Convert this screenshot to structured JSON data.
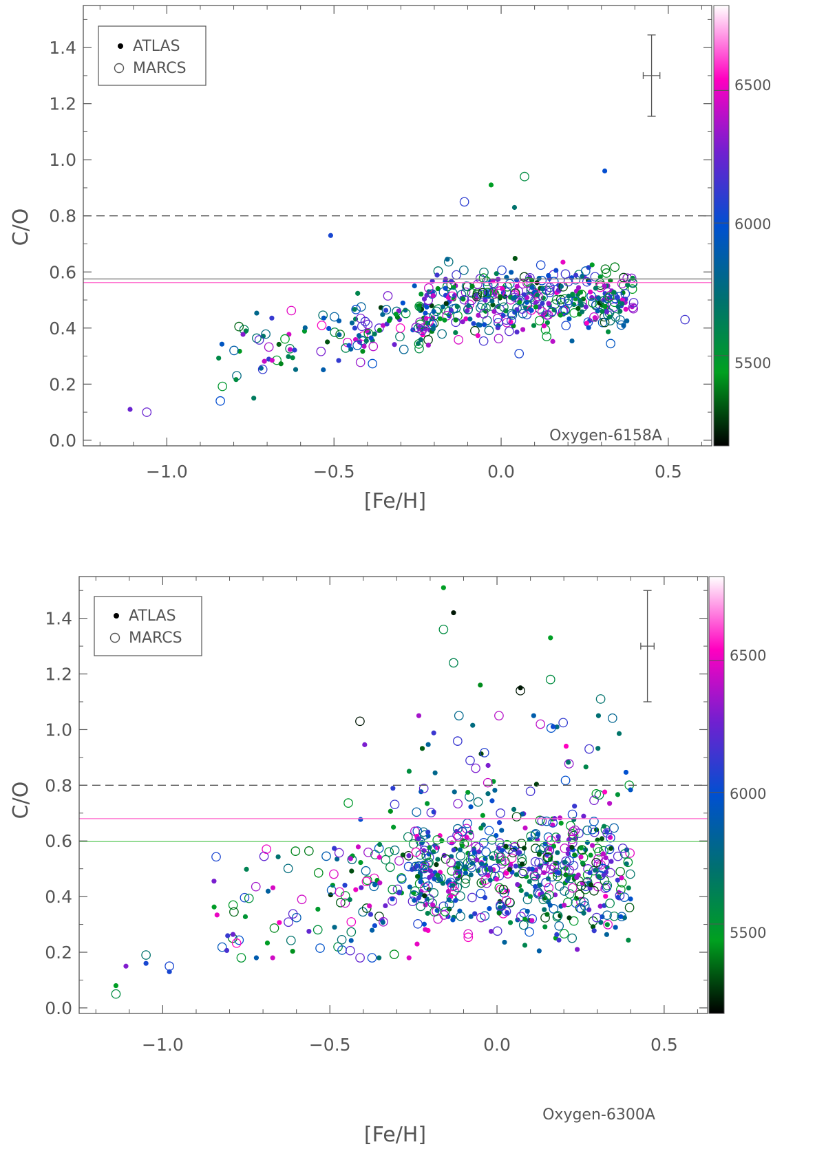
{
  "chart_data": [
    {
      "type": "scatter",
      "panel_label": "Oxygen-6158A",
      "xlabel": "[Fe/H]",
      "ylabel": "C/O",
      "xlim": [
        -1.25,
        0.63
      ],
      "ylim": [
        -0.02,
        1.55
      ],
      "xticks": [
        -1.0,
        -0.5,
        0.0,
        0.5
      ],
      "xtick_labels": [
        "−1.0",
        "−0.5",
        "0.0",
        "0.5"
      ],
      "yticks": [
        0.0,
        0.2,
        0.4,
        0.6,
        0.8,
        1.0,
        1.2,
        1.4
      ],
      "ytick_labels": [
        "0.0",
        "0.2",
        "0.4",
        "0.6",
        "0.8",
        "1.0",
        "1.2",
        "1.4"
      ],
      "legend": {
        "position": "top-left",
        "entries": [
          {
            "marker": "filled",
            "label": "ATLAS"
          },
          {
            "marker": "open",
            "label": "MARCS"
          }
        ]
      },
      "colorbar": {
        "label_values": [
          "5500",
          "6000",
          "6500"
        ],
        "range": [
          5160,
          6820
        ],
        "stops": [
          "#000000",
          "#00a020",
          "#007070",
          "#0050d0",
          "#7020d0",
          "#ff00c0",
          "#ffffff"
        ]
      },
      "reference_lines": [
        {
          "y": 0.8,
          "style": "dashed",
          "color": "#555555"
        },
        {
          "y": 0.575,
          "style": "solid",
          "color": "#7a7a7a"
        },
        {
          "y": 0.562,
          "style": "solid",
          "color": "#ff66cc"
        }
      ],
      "error_bar": {
        "x": 0.45,
        "y": 1.3,
        "xerr": 0.025,
        "yerr": 0.145
      },
      "highlights": [
        {
          "x": -1.11,
          "y": 0.11,
          "teff": 6250
        },
        {
          "x": -1.06,
          "y": 0.1,
          "teff": 6250
        },
        {
          "x": -0.51,
          "y": 0.73,
          "teff": 6050
        },
        {
          "x": 0.55,
          "y": 0.43,
          "teff": 6150
        },
        {
          "x": 0.31,
          "y": 0.96,
          "teff": 6000
        },
        {
          "x": 0.07,
          "y": 0.94,
          "teff": 5550
        },
        {
          "x": -0.03,
          "y": 0.91,
          "teff": 5450
        },
        {
          "x": -0.11,
          "y": 0.85,
          "teff": 6100
        },
        {
          "x": 0.04,
          "y": 0.83,
          "teff": 5700
        },
        {
          "x": -0.84,
          "y": 0.14,
          "teff": 6000
        },
        {
          "x": -0.74,
          "y": 0.15,
          "teff": 5650
        }
      ],
      "seed": 1
    },
    {
      "type": "scatter",
      "panel_label": "Oxygen-6300A",
      "xlabel": "[Fe/H]",
      "ylabel": "C/O",
      "xlim": [
        -1.25,
        0.63
      ],
      "ylim": [
        -0.02,
        1.55
      ],
      "xticks": [
        -1.0,
        -0.5,
        0.0,
        0.5
      ],
      "xtick_labels": [
        "−1.0",
        "−0.5",
        "0.0",
        "0.5"
      ],
      "yticks": [
        0.0,
        0.2,
        0.4,
        0.6,
        0.8,
        1.0,
        1.2,
        1.4
      ],
      "ytick_labels": [
        "0.0",
        "0.2",
        "0.4",
        "0.6",
        "0.8",
        "1.0",
        "1.2",
        "1.4"
      ],
      "legend": {
        "position": "top-left",
        "entries": [
          {
            "marker": "filled",
            "label": "ATLAS"
          },
          {
            "marker": "open",
            "label": "MARCS"
          }
        ]
      },
      "colorbar": {
        "label_values": [
          "5500",
          "6000",
          "6500"
        ],
        "range": [
          5160,
          6820
        ],
        "stops": [
          "#000000",
          "#00a020",
          "#007070",
          "#0050d0",
          "#7020d0",
          "#ff00c0",
          "#ffffff"
        ]
      },
      "reference_lines": [
        {
          "y": 0.8,
          "style": "dashed",
          "color": "#555555"
        },
        {
          "y": 0.68,
          "style": "solid",
          "color": "#ff66cc"
        },
        {
          "y": 0.598,
          "style": "solid",
          "color": "#66cc66"
        }
      ],
      "error_bar": {
        "x": 0.45,
        "y": 1.3,
        "xerr": 0.02,
        "yerr": 0.2
      },
      "highlights": [
        {
          "x": -0.16,
          "y": 1.51,
          "teff": 5450
        },
        {
          "x": -0.16,
          "y": 1.36,
          "teff": 5550
        },
        {
          "x": -0.13,
          "y": 1.42,
          "teff": 5200
        },
        {
          "x": -0.13,
          "y": 1.24,
          "teff": 5600
        },
        {
          "x": 0.16,
          "y": 1.33,
          "teff": 5450
        },
        {
          "x": 0.16,
          "y": 1.18,
          "teff": 5550
        },
        {
          "x": 0.07,
          "y": 1.15,
          "teff": 5200
        },
        {
          "x": 0.07,
          "y": 1.14,
          "teff": 5200
        },
        {
          "x": -0.05,
          "y": 1.16,
          "teff": 5400
        },
        {
          "x": -0.41,
          "y": 1.03,
          "teff": 5200
        },
        {
          "x": -1.14,
          "y": 0.08,
          "teff": 5450
        },
        {
          "x": -1.14,
          "y": 0.05,
          "teff": 5550
        },
        {
          "x": -1.11,
          "y": 0.15,
          "teff": 6300
        },
        {
          "x": -1.05,
          "y": 0.19,
          "teff": 5700
        },
        {
          "x": -1.05,
          "y": 0.16,
          "teff": 6050
        },
        {
          "x": -0.98,
          "y": 0.15,
          "teff": 6050
        },
        {
          "x": -0.98,
          "y": 0.13,
          "teff": 6050
        },
        {
          "x": 0.31,
          "y": 1.11,
          "teff": 5700
        },
        {
          "x": 0.24,
          "y": 0.21,
          "teff": 6300
        }
      ],
      "seed": 2
    }
  ]
}
